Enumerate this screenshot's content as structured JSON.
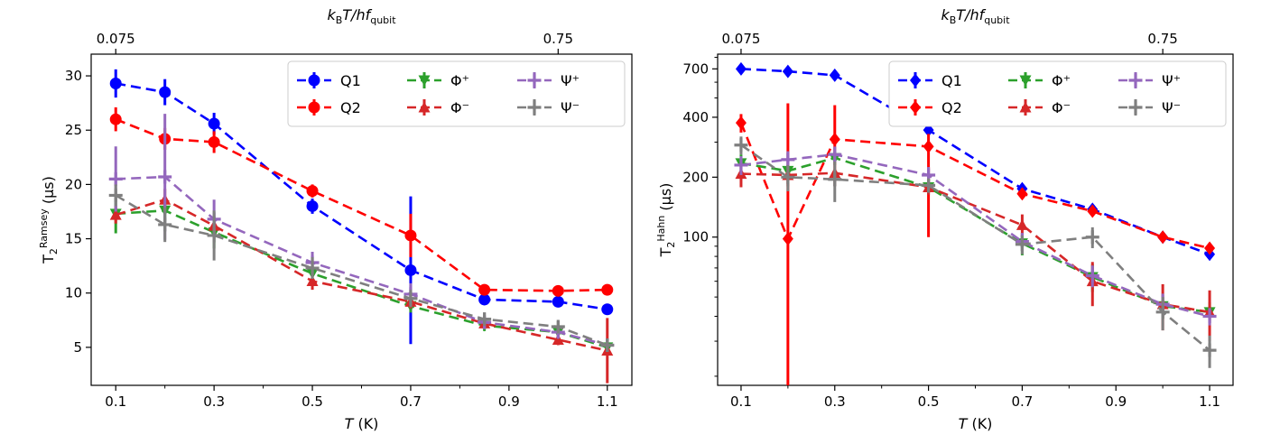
{
  "chart_data": [
    {
      "type": "line",
      "panel": "left",
      "xlabel_italic": "T",
      "xlabel_rest": " (K)",
      "ylabel_main": "T",
      "ylabel_sub": "2",
      "ylabel_sup": "Ramsey",
      "ylabel_unit": " (μs)",
      "top_label_k": "k",
      "top_label_ksub": "B",
      "top_label_mid": "T/hf",
      "top_label_fsub": "qubit",
      "xlim": [
        0.05,
        1.15
      ],
      "ylim": [
        1.5,
        32
      ],
      "y_scale": "linear",
      "x_ticks": [
        0.1,
        0.3,
        0.5,
        0.7,
        0.9,
        1.1
      ],
      "x_tick_labels": [
        "0.1",
        "0.3",
        "0.5",
        "0.7",
        "0.9",
        "1.1"
      ],
      "x_minor_ticks": [
        0.2,
        0.4,
        0.6,
        0.8,
        1.0
      ],
      "y_ticks": [
        5,
        10,
        15,
        20,
        25,
        30
      ],
      "y_tick_labels": [
        "5",
        "10",
        "15",
        "20",
        "25",
        "30"
      ],
      "top_ticks": [
        0.1,
        1.0
      ],
      "top_tick_labels": [
        "0.075",
        "0.75"
      ],
      "legend_position": "top-right",
      "x": [
        0.1,
        0.2,
        0.3,
        0.5,
        0.7,
        0.85,
        1.0,
        1.1
      ],
      "series": [
        {
          "name": "Q1",
          "color": "#0000ff",
          "marker": "circle",
          "values": [
            29.3,
            28.5,
            25.6,
            18.0,
            12.1,
            9.4,
            9.2,
            8.5
          ],
          "errors": [
            1.3,
            1.2,
            1.0,
            0.7,
            6.8,
            0.2,
            0.2,
            0.2
          ]
        },
        {
          "name": "Q2",
          "color": "#ff0000",
          "marker": "circle",
          "values": [
            26.0,
            24.2,
            23.9,
            19.4,
            15.3,
            10.3,
            10.2,
            10.3
          ],
          "errors": [
            1.1,
            1.0,
            1.0,
            0.6,
            2.0,
            0.3,
            0.3,
            0.2
          ]
        },
        {
          "name": "Φ⁺",
          "color": "#2ca02c",
          "marker": "triangle-down",
          "values": [
            17.3,
            17.6,
            15.6,
            11.8,
            8.8,
            7.0,
            6.4,
            5.0
          ],
          "errors": [
            1.8,
            1.0,
            1.5,
            0.8,
            0.6,
            0.5,
            0.5,
            0.5
          ]
        },
        {
          "name": "Φ⁻",
          "color": "#d62728",
          "marker": "triangle-up",
          "values": [
            17.2,
            18.6,
            16.2,
            11.1,
            9.2,
            7.2,
            5.7,
            4.7
          ],
          "errors": [
            0.8,
            1.0,
            0.8,
            0.8,
            0.6,
            0.5,
            0.5,
            3.0
          ]
        },
        {
          "name": "Ψ⁺",
          "color": "#9467bd",
          "marker": "plus",
          "values": [
            20.5,
            20.7,
            16.8,
            12.8,
            9.9,
            7.3,
            6.4,
            5.2
          ],
          "errors": [
            3.0,
            5.8,
            1.8,
            1.0,
            1.0,
            0.6,
            0.5,
            0.4
          ]
        },
        {
          "name": "Ψ⁻",
          "color": "#7f7f7f",
          "marker": "plus",
          "values": [
            19.0,
            16.3,
            15.3,
            12.3,
            9.5,
            7.6,
            6.9,
            5.2
          ],
          "errors": [
            1.0,
            1.6,
            2.3,
            1.0,
            0.8,
            0.6,
            0.5,
            0.6
          ]
        }
      ]
    },
    {
      "type": "line",
      "panel": "right",
      "xlabel_italic": "T",
      "xlabel_rest": " (K)",
      "ylabel_main": "T",
      "ylabel_sub": "2",
      "ylabel_sup": "Hahn",
      "ylabel_unit": " (μs)",
      "top_label_k": "k",
      "top_label_ksub": "B",
      "top_label_mid": "T/hf",
      "top_label_fsub": "qubit",
      "xlim": [
        0.05,
        1.15
      ],
      "ylim": [
        18,
        830
      ],
      "y_scale": "log",
      "x_ticks": [
        0.1,
        0.3,
        0.5,
        0.7,
        0.9,
        1.1
      ],
      "x_tick_labels": [
        "0.1",
        "0.3",
        "0.5",
        "0.7",
        "0.9",
        "1.1"
      ],
      "x_minor_ticks": [
        0.2,
        0.4,
        0.6,
        0.8,
        1.0
      ],
      "y_ticks": [
        100,
        200,
        400,
        700
      ],
      "y_tick_labels": [
        "100",
        "200",
        "400",
        "700"
      ],
      "y_minor_ticks": [
        20,
        30,
        40,
        50,
        60,
        70,
        80,
        90,
        300,
        500,
        600,
        800
      ],
      "top_ticks": [
        0.1,
        1.0
      ],
      "top_tick_labels": [
        "0.075",
        "0.75"
      ],
      "legend_position": "top-right",
      "x": [
        0.1,
        0.2,
        0.3,
        0.5,
        0.7,
        0.85,
        1.0,
        1.1
      ],
      "series": [
        {
          "name": "Q1",
          "color": "#0000ff",
          "marker": "diamond",
          "values": [
            700,
            680,
            650,
            345,
            175,
            138,
            100,
            82
          ],
          "errors": [
            20,
            20,
            25,
            15,
            8,
            6,
            4,
            4
          ]
        },
        {
          "name": "Q2",
          "color": "#ff0000",
          "marker": "diamond",
          "values": [
            375,
            98,
            310,
            285,
            165,
            135,
            100,
            88
          ],
          "errors": [
            40,
            0,
            0,
            0,
            6,
            6,
            4,
            4
          ]
        },
        {
          "name": "Φ⁺",
          "color": "#2ca02c",
          "marker": "triangle-down",
          "values": [
            235,
            215,
            250,
            178,
            93,
            63,
            45,
            42
          ],
          "errors": [
            25,
            15,
            20,
            12,
            12,
            10,
            6,
            5
          ]
        },
        {
          "name": "Φ⁻",
          "color": "#d62728",
          "marker": "triangle-up",
          "values": [
            208,
            205,
            210,
            178,
            115,
            60,
            46,
            42
          ],
          "errors": [
            30,
            25,
            30,
            15,
            15,
            15,
            12,
            12
          ]
        },
        {
          "name": "Ψ⁺",
          "color": "#9467bd",
          "marker": "plus",
          "values": [
            230,
            245,
            260,
            205,
            95,
            64,
            46,
            40
          ],
          "errors": [
            25,
            25,
            25,
            20,
            10,
            8,
            6,
            4
          ]
        },
        {
          "name": "Ψ⁻",
          "color": "#7f7f7f",
          "marker": "plus",
          "values": [
            290,
            200,
            195,
            182,
            92,
            100,
            42,
            27
          ],
          "errors": [
            30,
            30,
            45,
            15,
            10,
            12,
            8,
            5
          ]
        }
      ],
      "error_ranges": {
        "Q2": [
          [
            0.2,
            18,
            470
          ],
          [
            0.3,
            255,
            460
          ],
          [
            0.5,
            100,
            330
          ]
        ]
      }
    }
  ]
}
